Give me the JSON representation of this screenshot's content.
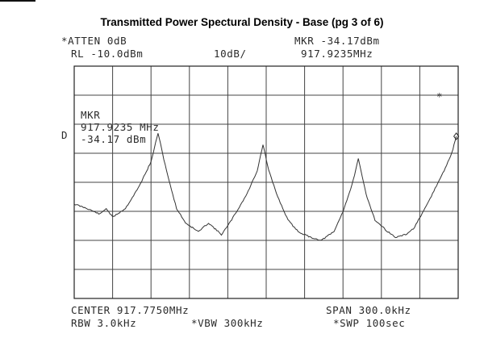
{
  "title": "Transmitted Power Spectural Density  - Base (pg 3 of  6)",
  "header": {
    "atten": "*ATTEN 0dB",
    "ref_level": "RL -10.0dBm",
    "scale": "10dB/",
    "mkr_readout": "MKR -34.17dBm",
    "mkr_freq": "917.9235MHz"
  },
  "marker_box": {
    "label": "MKR",
    "freq": "917.9235 MHz",
    "level": "-34.17 dBm"
  },
  "side_label": "D",
  "marker_symbol": "*",
  "footer": {
    "center": "CENTER 917.7750MHz",
    "span": "SPAN 300.0kHz",
    "rbw": "RBW 3.0kHz",
    "vbw": "*VBW 300kHz",
    "swp": "*SWP 100sec"
  },
  "chart_data": {
    "type": "line",
    "title": "Transmitted Power Spectural Density  - Base (pg 3 of  6)",
    "center_mhz": 917.775,
    "span_khz": 300.0,
    "ref_level_dbm": -10.0,
    "scale_db_per_div": 10,
    "grid": true,
    "divisions": {
      "x": 10,
      "y": 8
    },
    "xlim_mhz": [
      917.625,
      917.925
    ],
    "ylim_dbm": [
      -90,
      -10
    ],
    "marker": {
      "x_mhz": 917.9235,
      "y_dbm": -34.17
    },
    "series": [
      {
        "x_mhz": [
          917.625,
          917.635,
          917.645,
          917.65,
          917.655,
          917.665,
          917.675,
          917.685,
          917.6905,
          917.695,
          917.7,
          917.705,
          917.712,
          917.722,
          917.73,
          917.74,
          917.745,
          917.752,
          917.76,
          917.768,
          917.7725,
          917.777,
          917.784,
          917.792,
          917.8,
          917.81,
          917.818,
          917.828,
          917.835,
          917.842,
          917.847,
          917.853,
          917.86,
          917.87,
          917.876,
          917.884,
          917.89,
          917.898,
          917.906,
          917.914,
          917.92,
          917.9235
        ],
        "y_dbm": [
          -57.5,
          -59,
          -61,
          -59,
          -62,
          -59,
          -52,
          -43,
          -33,
          -42,
          -51,
          -59,
          -64,
          -67,
          -64,
          -68,
          -65,
          -60,
          -54,
          -46,
          -37,
          -46,
          -55,
          -63,
          -67,
          -69,
          -70,
          -67,
          -60,
          -51,
          -42,
          -54,
          -63,
          -67,
          -69,
          -68,
          -66,
          -60,
          -53,
          -46,
          -40,
          -34.17
        ]
      }
    ]
  }
}
